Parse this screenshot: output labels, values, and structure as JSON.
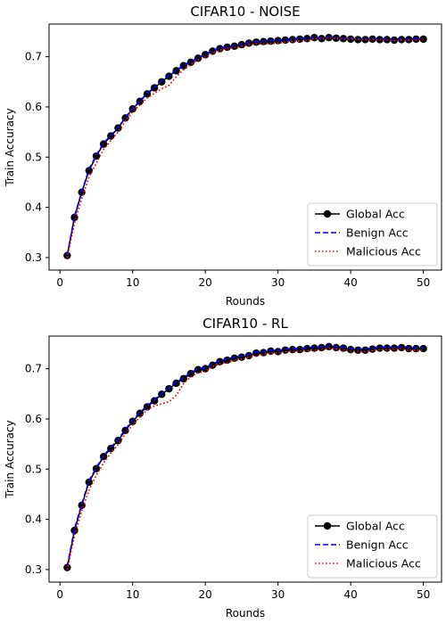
{
  "chart_data": [
    {
      "type": "line",
      "title": "CIFAR10 - NOISE",
      "xlabel": "Rounds",
      "ylabel": "Train Accuracy",
      "xlim": [
        -1.5,
        52.5
      ],
      "ylim": [
        0.275,
        0.765
      ],
      "xticks": [
        0,
        10,
        20,
        30,
        40,
        50
      ],
      "yticks": [
        0.3,
        0.4,
        0.5,
        0.6,
        0.7
      ],
      "legend_position": "lower-right",
      "x": [
        1,
        2,
        3,
        4,
        5,
        6,
        7,
        8,
        9,
        10,
        11,
        12,
        13,
        14,
        15,
        16,
        17,
        18,
        19,
        20,
        21,
        22,
        23,
        24,
        25,
        26,
        27,
        28,
        29,
        30,
        31,
        32,
        33,
        34,
        35,
        36,
        37,
        38,
        39,
        40,
        41,
        42,
        43,
        44,
        45,
        46,
        47,
        48,
        49,
        50
      ],
      "series": [
        {
          "name": "Global Acc",
          "color": "#000000",
          "style": "solid-marker",
          "values": [
            0.304,
            0.38,
            0.43,
            0.473,
            0.502,
            0.526,
            0.542,
            0.558,
            0.578,
            0.596,
            0.611,
            0.626,
            0.638,
            0.65,
            0.661,
            0.672,
            0.682,
            0.689,
            0.697,
            0.704,
            0.711,
            0.716,
            0.719,
            0.721,
            0.724,
            0.727,
            0.729,
            0.73,
            0.731,
            0.732,
            0.733,
            0.734,
            0.735,
            0.736,
            0.738,
            0.736,
            0.738,
            0.737,
            0.736,
            0.735,
            0.734,
            0.734,
            0.735,
            0.734,
            0.734,
            0.733,
            0.734,
            0.734,
            0.735,
            0.735
          ]
        },
        {
          "name": "Benign Acc",
          "color": "#0000ff",
          "style": "dashed",
          "values": [
            0.305,
            0.382,
            0.431,
            0.476,
            0.504,
            0.528,
            0.543,
            0.559,
            0.579,
            0.597,
            0.612,
            0.627,
            0.639,
            0.652,
            0.662,
            0.673,
            0.683,
            0.69,
            0.698,
            0.705,
            0.712,
            0.717,
            0.72,
            0.722,
            0.725,
            0.728,
            0.73,
            0.731,
            0.732,
            0.733,
            0.734,
            0.735,
            0.736,
            0.737,
            0.739,
            0.737,
            0.739,
            0.738,
            0.737,
            0.736,
            0.735,
            0.735,
            0.736,
            0.735,
            0.735,
            0.734,
            0.735,
            0.735,
            0.736,
            0.736
          ]
        },
        {
          "name": "Malicious Acc",
          "color": "#ff0000",
          "style": "dotted",
          "values": [
            0.3,
            0.368,
            0.418,
            0.46,
            0.488,
            0.515,
            0.533,
            0.55,
            0.572,
            0.59,
            0.604,
            0.618,
            0.627,
            0.636,
            0.643,
            0.66,
            0.674,
            0.684,
            0.694,
            0.7,
            0.707,
            0.713,
            0.716,
            0.718,
            0.721,
            0.724,
            0.726,
            0.725,
            0.726,
            0.727,
            0.729,
            0.731,
            0.731,
            0.732,
            0.736,
            0.735,
            0.738,
            0.736,
            0.735,
            0.736,
            0.735,
            0.734,
            0.735,
            0.733,
            0.734,
            0.732,
            0.733,
            0.733,
            0.734,
            0.735
          ]
        }
      ]
    },
    {
      "type": "line",
      "title": "CIFAR10 - RL",
      "xlabel": "Rounds",
      "ylabel": "Train Accuracy",
      "xlim": [
        -1.5,
        52.5
      ],
      "ylim": [
        0.275,
        0.765
      ],
      "xticks": [
        0,
        10,
        20,
        30,
        40,
        50
      ],
      "yticks": [
        0.3,
        0.4,
        0.5,
        0.6,
        0.7
      ],
      "legend_position": "lower-right",
      "x": [
        1,
        2,
        3,
        4,
        5,
        6,
        7,
        8,
        9,
        10,
        11,
        12,
        13,
        14,
        15,
        16,
        17,
        18,
        19,
        20,
        21,
        22,
        23,
        24,
        25,
        26,
        27,
        28,
        29,
        30,
        31,
        32,
        33,
        34,
        35,
        36,
        37,
        38,
        39,
        40,
        41,
        42,
        43,
        44,
        45,
        46,
        47,
        48,
        49,
        50
      ],
      "series": [
        {
          "name": "Global Acc",
          "color": "#000000",
          "style": "solid-marker",
          "values": [
            0.304,
            0.378,
            0.428,
            0.474,
            0.501,
            0.525,
            0.541,
            0.557,
            0.577,
            0.595,
            0.611,
            0.624,
            0.636,
            0.649,
            0.66,
            0.671,
            0.68,
            0.69,
            0.698,
            0.7,
            0.707,
            0.714,
            0.717,
            0.721,
            0.723,
            0.726,
            0.731,
            0.732,
            0.735,
            0.734,
            0.737,
            0.738,
            0.738,
            0.74,
            0.741,
            0.742,
            0.744,
            0.742,
            0.741,
            0.738,
            0.737,
            0.737,
            0.739,
            0.741,
            0.741,
            0.741,
            0.742,
            0.74,
            0.74,
            0.74
          ]
        },
        {
          "name": "Benign Acc",
          "color": "#0000ff",
          "style": "dashed",
          "values": [
            0.306,
            0.381,
            0.43,
            0.477,
            0.503,
            0.527,
            0.543,
            0.559,
            0.579,
            0.597,
            0.613,
            0.626,
            0.638,
            0.651,
            0.662,
            0.673,
            0.682,
            0.692,
            0.7,
            0.702,
            0.709,
            0.716,
            0.719,
            0.723,
            0.725,
            0.728,
            0.733,
            0.734,
            0.737,
            0.736,
            0.739,
            0.74,
            0.74,
            0.742,
            0.743,
            0.744,
            0.746,
            0.744,
            0.743,
            0.74,
            0.739,
            0.739,
            0.741,
            0.743,
            0.743,
            0.743,
            0.744,
            0.742,
            0.742,
            0.742
          ]
        },
        {
          "name": "Malicious Acc",
          "color": "#ff0000",
          "style": "dotted",
          "values": [
            0.3,
            0.367,
            0.417,
            0.458,
            0.488,
            0.512,
            0.532,
            0.549,
            0.57,
            0.588,
            0.604,
            0.618,
            0.626,
            0.63,
            0.634,
            0.647,
            0.67,
            0.684,
            0.692,
            0.694,
            0.704,
            0.71,
            0.712,
            0.716,
            0.719,
            0.723,
            0.726,
            0.729,
            0.731,
            0.731,
            0.734,
            0.735,
            0.735,
            0.736,
            0.737,
            0.738,
            0.741,
            0.74,
            0.738,
            0.735,
            0.735,
            0.734,
            0.736,
            0.738,
            0.738,
            0.739,
            0.74,
            0.737,
            0.737,
            0.737
          ]
        }
      ]
    }
  ]
}
